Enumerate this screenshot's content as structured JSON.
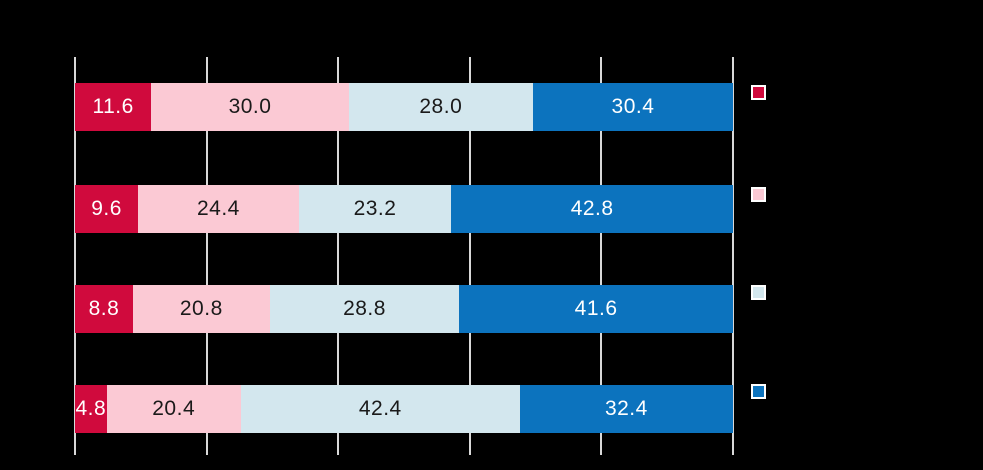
{
  "chart_data": {
    "type": "bar",
    "orientation": "horizontal",
    "stacked": true,
    "stack_total": 100,
    "title": "",
    "xlabel": "",
    "ylabel": "",
    "categories": [
      "",
      "",
      "",
      ""
    ],
    "series": [
      {
        "name": "red",
        "color": "#D00A3D",
        "label_color": "#FFFFFF",
        "values": [
          11.6,
          9.6,
          8.8,
          4.8
        ],
        "labels": [
          "11.6",
          "9.6",
          "8.8",
          "4.8"
        ]
      },
      {
        "name": "pink",
        "color": "#FBC9D4",
        "label_color": "#1A1A1A",
        "values": [
          30.0,
          24.4,
          20.8,
          20.4
        ],
        "labels": [
          "30.0",
          "24.4",
          "20.8",
          "20.4"
        ]
      },
      {
        "name": "light-blue",
        "color": "#D3E7EE",
        "label_color": "#1A1A1A",
        "values": [
          28.0,
          23.2,
          28.8,
          42.4
        ],
        "labels": [
          "28.0",
          "23.2",
          "28.8",
          "42.4"
        ]
      },
      {
        "name": "blue",
        "color": "#0C73BE",
        "label_color": "#FFFFFF",
        "values": [
          30.4,
          42.8,
          41.6,
          32.4
        ],
        "labels": [
          "30.4",
          "42.8",
          "41.6",
          "32.4"
        ]
      }
    ],
    "xlim": [
      0,
      100
    ],
    "xticks": [
      0,
      20,
      40,
      60,
      80,
      100
    ],
    "grid": true,
    "gridline_color": "#D9D9D9",
    "background_color": "#000000",
    "legend_position": "right"
  },
  "legend": {
    "swatch_border_color": "#FFFFFF",
    "items": [
      {
        "name": "red",
        "color": "#D00A3D",
        "label": ""
      },
      {
        "name": "pink",
        "color": "#FBC9D4",
        "label": ""
      },
      {
        "name": "light-blue",
        "color": "#D3E7EE",
        "label": ""
      },
      {
        "name": "blue",
        "color": "#0C73BE",
        "label": ""
      }
    ]
  }
}
